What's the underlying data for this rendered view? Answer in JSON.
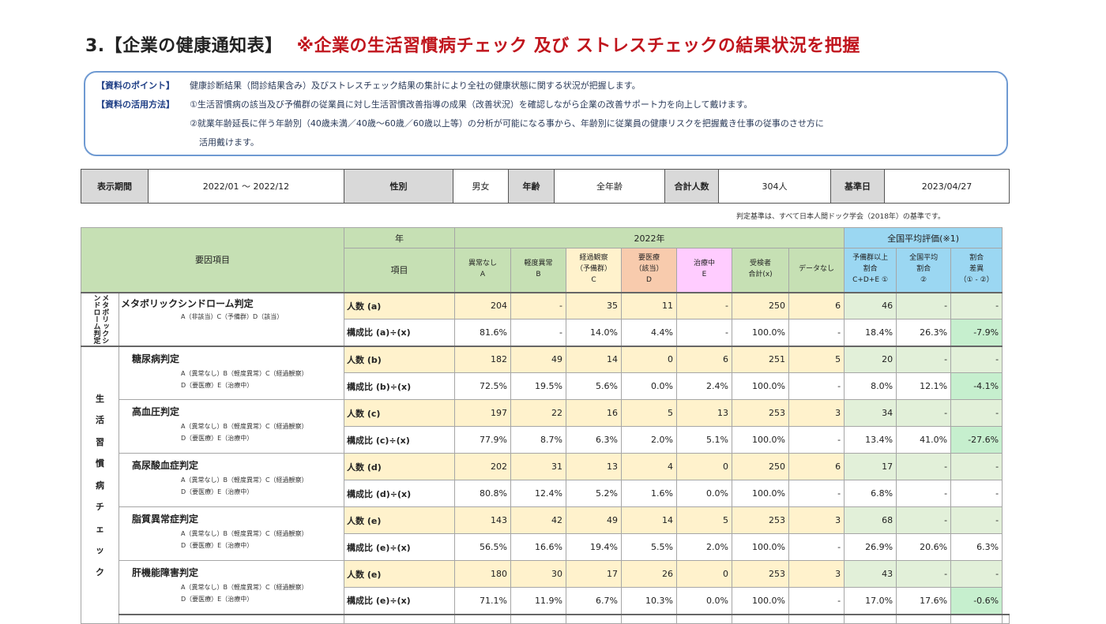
{
  "title": {
    "prefix": "3.【企業の健康通知表】",
    "highlight": "※企業の生活習慣病チェック 及び ストレスチェックの結果状況を把握"
  },
  "notes": {
    "point_label": "【資料のポイント】",
    "point_text": "健康診断結果（問診結果含み）及びストレスチェック結果の集計により全社の健康状態に関する状況が把握します。",
    "usage_label": "【資料の活用方法】",
    "usage_1": "①生活習慣病の該当及び予備群の従業員に対し生活習慣改善指導の成果（改善状況）を確認しながら企業の改善サポート力を向上して戴けます。",
    "usage_2": "②就業年齢延長に伴う年齢別（40歳未満／40歳～60歳／60歳以上等）の分析が可能になる事から、年齢別に従業員の健康リスクを把握戴き仕事の従事のさせ方に",
    "usage_3": "活用戴けます。"
  },
  "info": {
    "period_label": "表示期間",
    "period": "2022/01 ～ 2022/12",
    "gender_label": "性別",
    "gender": "男女",
    "age_label": "年齢",
    "age": "全年齢",
    "total_label": "合計人数",
    "total": "304人",
    "date_label": "基準日",
    "date": "2023/04/27"
  },
  "basis_note": "判定基準は、すべて日本人間ドック学会（2018年）の基準です。",
  "header": {
    "factor": "要因項目",
    "year_label": "年",
    "item_label": "項目",
    "year": "2022年",
    "national": "全国平均評価(※1)",
    "cols": {
      "a1": "異常なし",
      "a2": "A",
      "b1": "軽度異常",
      "b2": "B",
      "c1": "経過観察",
      "c2": "（予備群）",
      "c3": "C",
      "d1": "要医療",
      "d2": "（該当）",
      "d3": "D",
      "e1": "治療中",
      "e2": "E",
      "x1": "受検者",
      "x2": "合計(x)",
      "nodata": "データなし",
      "p1": "予備群以上",
      "p2": "割合",
      "p3": "C+D+E ①",
      "q1": "全国平均",
      "q2": "割合",
      "q3": "②",
      "r1": "割合",
      "r2": "差異",
      "r3": "（① - ②）"
    }
  },
  "categories": {
    "metabolic": "メタボリックシンドローム判定",
    "lifestyle": [
      "生",
      "活",
      "習",
      "慣",
      "病",
      "チ",
      "ェ",
      "ッ",
      "ク"
    ]
  },
  "items": [
    {
      "name": "メタボリックシンドローム判定",
      "sub1": "A（非該当）C（予備群）D（該当）",
      "sub2": "",
      "count_label": "人数 (a)",
      "ratio_label": "構成比 (a)÷(x)",
      "counts": [
        "204",
        "-",
        "35",
        "11",
        "-",
        "250",
        "6",
        "46",
        "-",
        "-"
      ],
      "ratios": [
        "81.6%",
        "-",
        "14.0%",
        "4.4%",
        "-",
        "100.0%",
        "-",
        "18.4%",
        "26.3%",
        "-7.9%"
      ]
    },
    {
      "name": "糖尿病判定",
      "sub1": "A（異常なし）B（軽度異常）C（経過観察）",
      "sub2": "D（要医療）E（治療中）",
      "count_label": "人数 (b)",
      "ratio_label": "構成比 (b)÷(x)",
      "counts": [
        "182",
        "49",
        "14",
        "0",
        "6",
        "251",
        "5",
        "20",
        "-",
        "-"
      ],
      "ratios": [
        "72.5%",
        "19.5%",
        "5.6%",
        "0.0%",
        "2.4%",
        "100.0%",
        "-",
        "8.0%",
        "12.1%",
        "-4.1%"
      ]
    },
    {
      "name": "高血圧判定",
      "sub1": "A（異常なし）B（軽度異常）C（経過観察）",
      "sub2": "D（要医療）E（治療中）",
      "count_label": "人数 (c)",
      "ratio_label": "構成比 (c)÷(x)",
      "counts": [
        "197",
        "22",
        "16",
        "5",
        "13",
        "253",
        "3",
        "34",
        "-",
        "-"
      ],
      "ratios": [
        "77.9%",
        "8.7%",
        "6.3%",
        "2.0%",
        "5.1%",
        "100.0%",
        "-",
        "13.4%",
        "41.0%",
        "-27.6%"
      ]
    },
    {
      "name": "高尿酸血症判定",
      "sub1": "A（異常なし）B（軽度異常）C（経過観察）",
      "sub2": "D（要医療）E（治療中）",
      "count_label": "人数 (d)",
      "ratio_label": "構成比 (d)÷(x)",
      "counts": [
        "202",
        "31",
        "13",
        "4",
        "0",
        "250",
        "6",
        "17",
        "-",
        "-"
      ],
      "ratios": [
        "80.8%",
        "12.4%",
        "5.2%",
        "1.6%",
        "0.0%",
        "100.0%",
        "-",
        "6.8%",
        "-",
        "-"
      ]
    },
    {
      "name": "脂質異常症判定",
      "sub1": "A（異常なし）B（軽度異常）C（経過観察）",
      "sub2": "D（要医療）E（治療中）",
      "count_label": "人数 (e)",
      "ratio_label": "構成比 (e)÷(x)",
      "counts": [
        "143",
        "42",
        "49",
        "14",
        "5",
        "253",
        "3",
        "68",
        "-",
        "-"
      ],
      "ratios": [
        "56.5%",
        "16.6%",
        "19.4%",
        "5.5%",
        "2.0%",
        "100.0%",
        "-",
        "26.9%",
        "20.6%",
        "6.3%"
      ]
    },
    {
      "name": "肝機能障害判定",
      "sub1": "A（異常なし）B（軽度異常）C（経過観察）",
      "sub2": "D（要医療）E（治療中）",
      "count_label": "人数 (e)",
      "ratio_label": "構成比 (e)÷(x)",
      "counts": [
        "180",
        "30",
        "17",
        "26",
        "0",
        "253",
        "3",
        "43",
        "-",
        "-"
      ],
      "ratios": [
        "71.1%",
        "11.9%",
        "6.7%",
        "10.3%",
        "0.0%",
        "100.0%",
        "-",
        "17.0%",
        "17.6%",
        "-0.6%"
      ]
    }
  ],
  "colors": {
    "title_red": "#c0151d",
    "header_green": "#c6e0b4",
    "header_yellow": "#fff2cc",
    "header_orange": "#f8cbad",
    "header_pink": "#ffccff",
    "header_blue": "#9bd7f2",
    "diff_green": "#c6efce"
  }
}
